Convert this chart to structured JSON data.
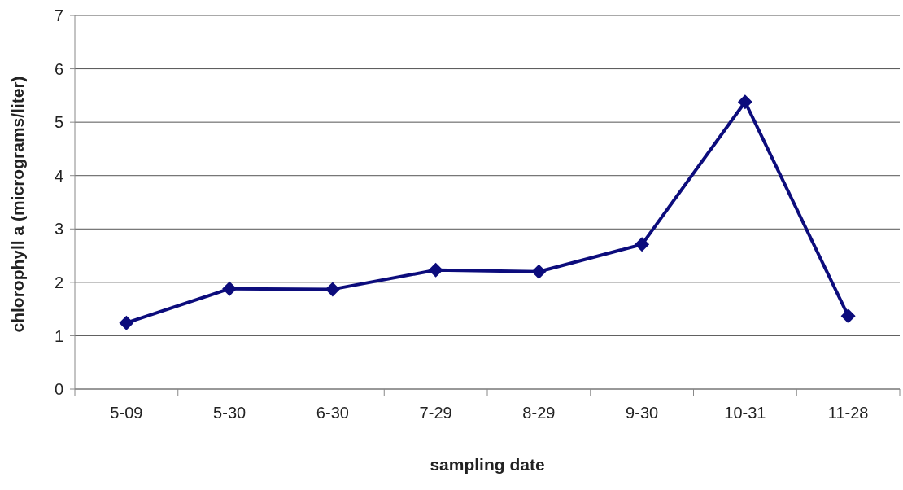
{
  "chart_data": {
    "type": "line",
    "xlabel": "sampling date",
    "ylabel": "chlorophyll a (micrograms/liter)",
    "categories": [
      "5-09",
      "5-30",
      "6-30",
      "7-29",
      "8-29",
      "9-30",
      "10-31",
      "11-28"
    ],
    "series": [
      {
        "color": "#0c0c7c",
        "values": [
          1.24,
          1.88,
          1.87,
          2.23,
          2.2,
          2.71,
          5.38,
          1.37
        ]
      }
    ],
    "ylim": [
      0,
      7
    ],
    "yticks": [
      0,
      1,
      2,
      3,
      4,
      5,
      6,
      7
    ],
    "grid": "y",
    "marker": "diamond",
    "line_style": "solid",
    "legend": false
  }
}
